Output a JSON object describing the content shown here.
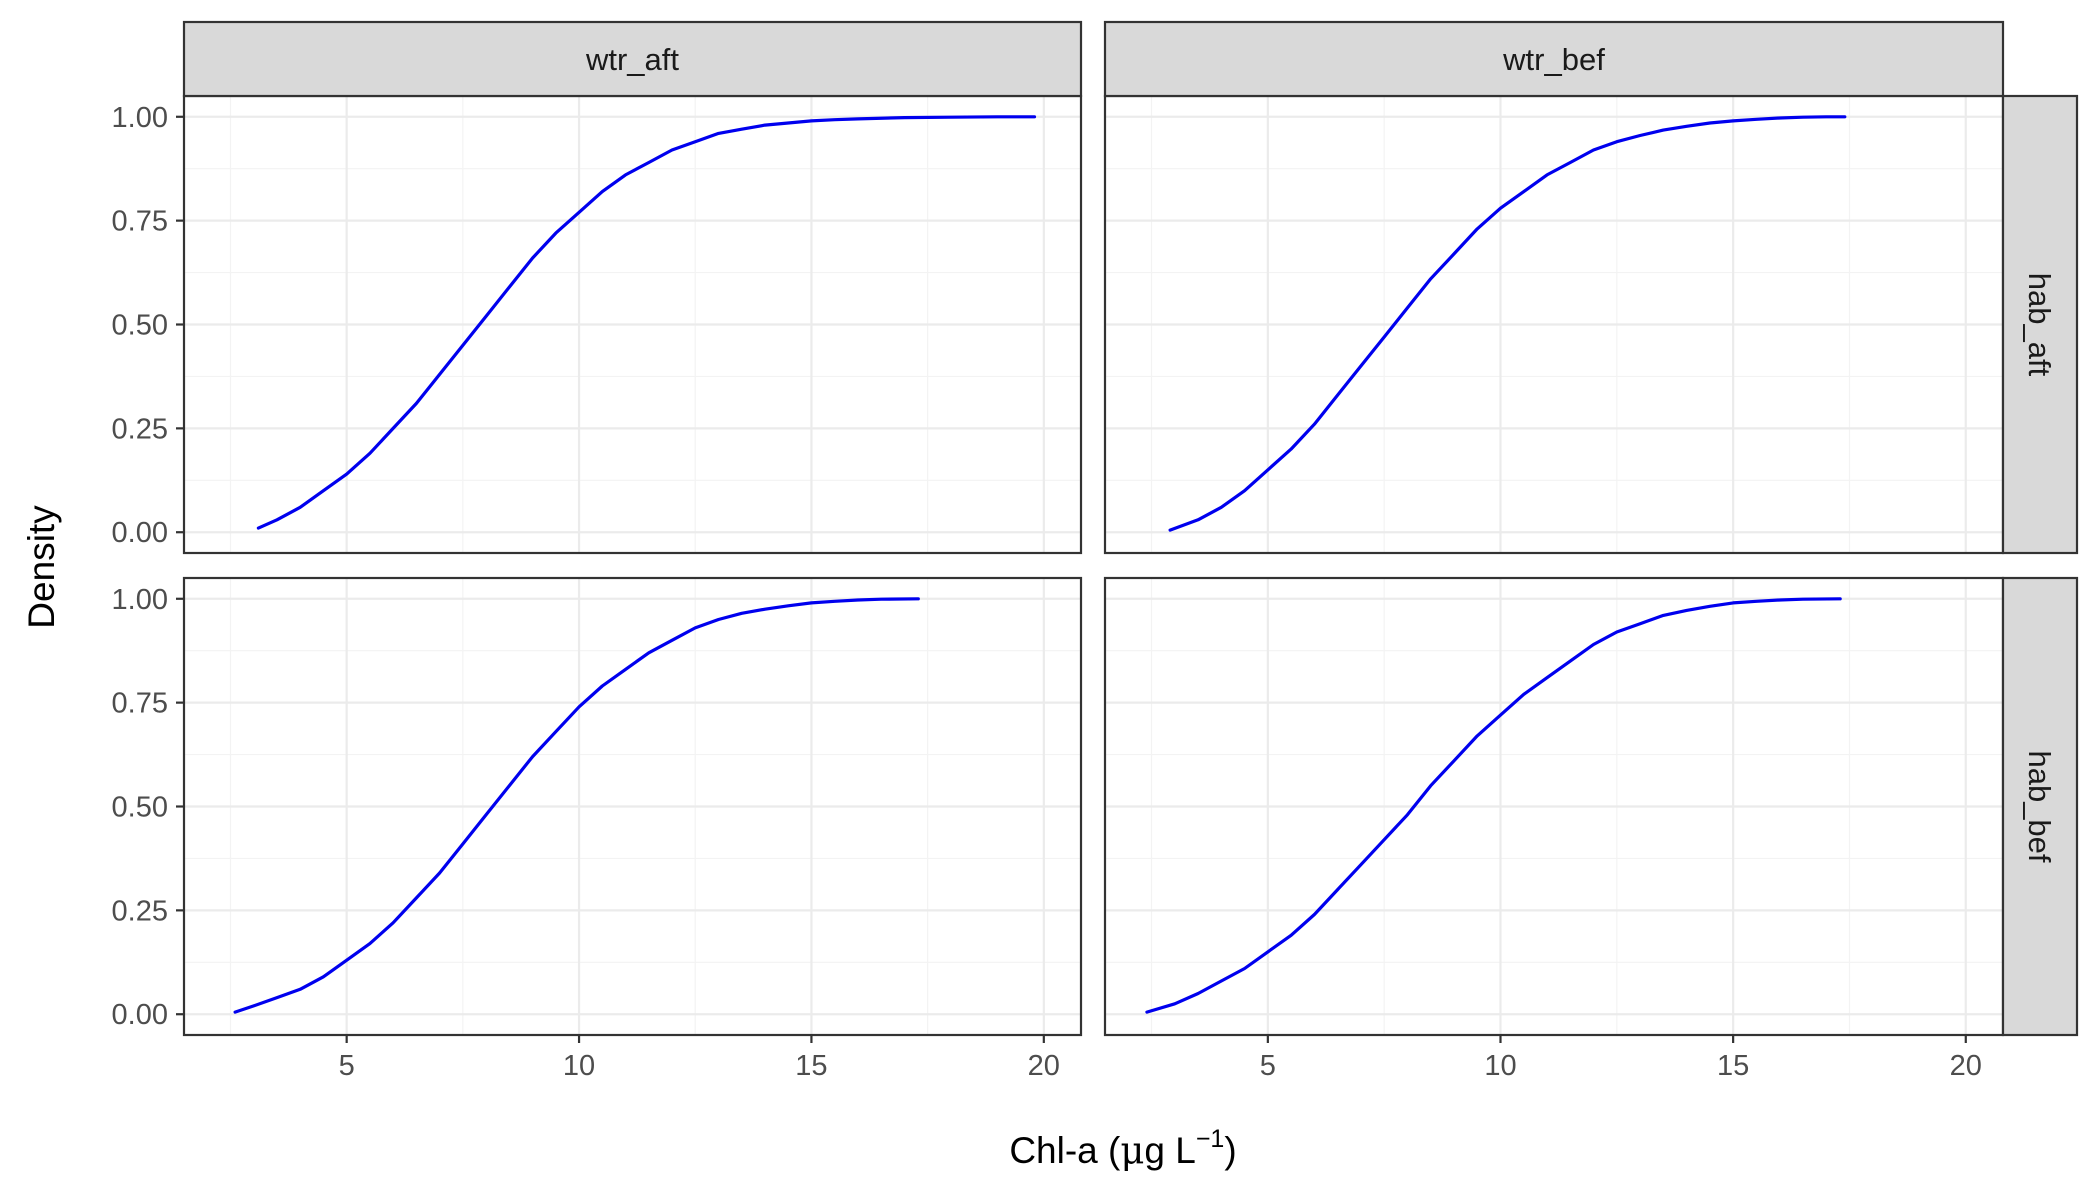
{
  "chart_data": {
    "type": "line",
    "facets": {
      "columns": [
        "wtr_aft",
        "wtr_bef"
      ],
      "rows": [
        "hab_aft",
        "hab_bef"
      ]
    },
    "xlabel": {
      "prefix": "Chl-a (",
      "mu": "μ",
      "unit": "g L",
      "superscript": "−1",
      "suffix": ")"
    },
    "ylabel": "Density",
    "xlim": [
      1.5,
      20.8
    ],
    "ylim": [
      -0.05,
      1.05
    ],
    "x_ticks": [
      5,
      10,
      15,
      20
    ],
    "x_tick_labels": [
      "5",
      "10",
      "15",
      "20"
    ],
    "y_ticks": [
      0,
      0.25,
      0.5,
      0.75,
      1.0
    ],
    "y_tick_labels": [
      "0.00",
      "0.25",
      "0.50",
      "0.75",
      "1.00"
    ],
    "grid": true,
    "line_color": "#0000ee",
    "panels": [
      {
        "column": "wtr_aft",
        "row": "hab_aft",
        "x": [
          3.1,
          3.5,
          4.0,
          4.5,
          5.0,
          5.5,
          6.0,
          6.5,
          7.0,
          7.5,
          8.0,
          8.5,
          9.0,
          9.5,
          10.0,
          10.5,
          11.0,
          11.5,
          12.0,
          12.5,
          13.0,
          13.5,
          14.0,
          14.5,
          15.0,
          15.5,
          16.0,
          17.0,
          18.0,
          19.0,
          19.8
        ],
        "y": [
          0.01,
          0.03,
          0.06,
          0.1,
          0.14,
          0.19,
          0.25,
          0.31,
          0.38,
          0.45,
          0.52,
          0.59,
          0.66,
          0.72,
          0.77,
          0.82,
          0.86,
          0.89,
          0.92,
          0.94,
          0.96,
          0.97,
          0.98,
          0.985,
          0.99,
          0.993,
          0.995,
          0.998,
          0.999,
          1.0,
          1.0
        ]
      },
      {
        "column": "wtr_bef",
        "row": "hab_aft",
        "x": [
          2.9,
          3.5,
          4.0,
          4.5,
          5.0,
          5.5,
          6.0,
          6.5,
          7.0,
          7.5,
          8.0,
          8.5,
          9.0,
          9.5,
          10.0,
          10.5,
          11.0,
          11.5,
          12.0,
          12.5,
          13.0,
          13.5,
          14.0,
          14.5,
          15.0,
          15.5,
          16.0,
          16.5,
          17.0,
          17.4
        ],
        "y": [
          0.005,
          0.03,
          0.06,
          0.1,
          0.15,
          0.2,
          0.26,
          0.33,
          0.4,
          0.47,
          0.54,
          0.61,
          0.67,
          0.73,
          0.78,
          0.82,
          0.86,
          0.89,
          0.92,
          0.94,
          0.955,
          0.968,
          0.977,
          0.985,
          0.99,
          0.994,
          0.997,
          0.999,
          1.0,
          1.0
        ]
      },
      {
        "column": "wtr_aft",
        "row": "hab_bef",
        "x": [
          2.6,
          3.0,
          3.5,
          4.0,
          4.5,
          5.0,
          5.5,
          6.0,
          6.5,
          7.0,
          7.5,
          8.0,
          8.5,
          9.0,
          9.5,
          10.0,
          10.5,
          11.0,
          11.5,
          12.0,
          12.5,
          13.0,
          13.5,
          14.0,
          14.5,
          15.0,
          15.5,
          16.0,
          16.5,
          17.3
        ],
        "y": [
          0.005,
          0.02,
          0.04,
          0.06,
          0.09,
          0.13,
          0.17,
          0.22,
          0.28,
          0.34,
          0.41,
          0.48,
          0.55,
          0.62,
          0.68,
          0.74,
          0.79,
          0.83,
          0.87,
          0.9,
          0.93,
          0.95,
          0.965,
          0.975,
          0.983,
          0.99,
          0.994,
          0.997,
          0.999,
          1.0
        ]
      },
      {
        "column": "wtr_bef",
        "row": "hab_bef",
        "x": [
          2.4,
          3.0,
          3.5,
          4.0,
          4.5,
          5.0,
          5.5,
          6.0,
          6.5,
          7.0,
          7.5,
          8.0,
          8.5,
          9.0,
          9.5,
          10.0,
          10.5,
          11.0,
          11.5,
          12.0,
          12.5,
          13.0,
          13.5,
          14.0,
          14.5,
          15.0,
          15.5,
          16.0,
          16.5,
          17.3
        ],
        "y": [
          0.005,
          0.025,
          0.05,
          0.08,
          0.11,
          0.15,
          0.19,
          0.24,
          0.3,
          0.36,
          0.42,
          0.48,
          0.55,
          0.61,
          0.67,
          0.72,
          0.77,
          0.81,
          0.85,
          0.89,
          0.92,
          0.94,
          0.96,
          0.972,
          0.982,
          0.99,
          0.994,
          0.997,
          0.999,
          1.0
        ]
      }
    ]
  }
}
